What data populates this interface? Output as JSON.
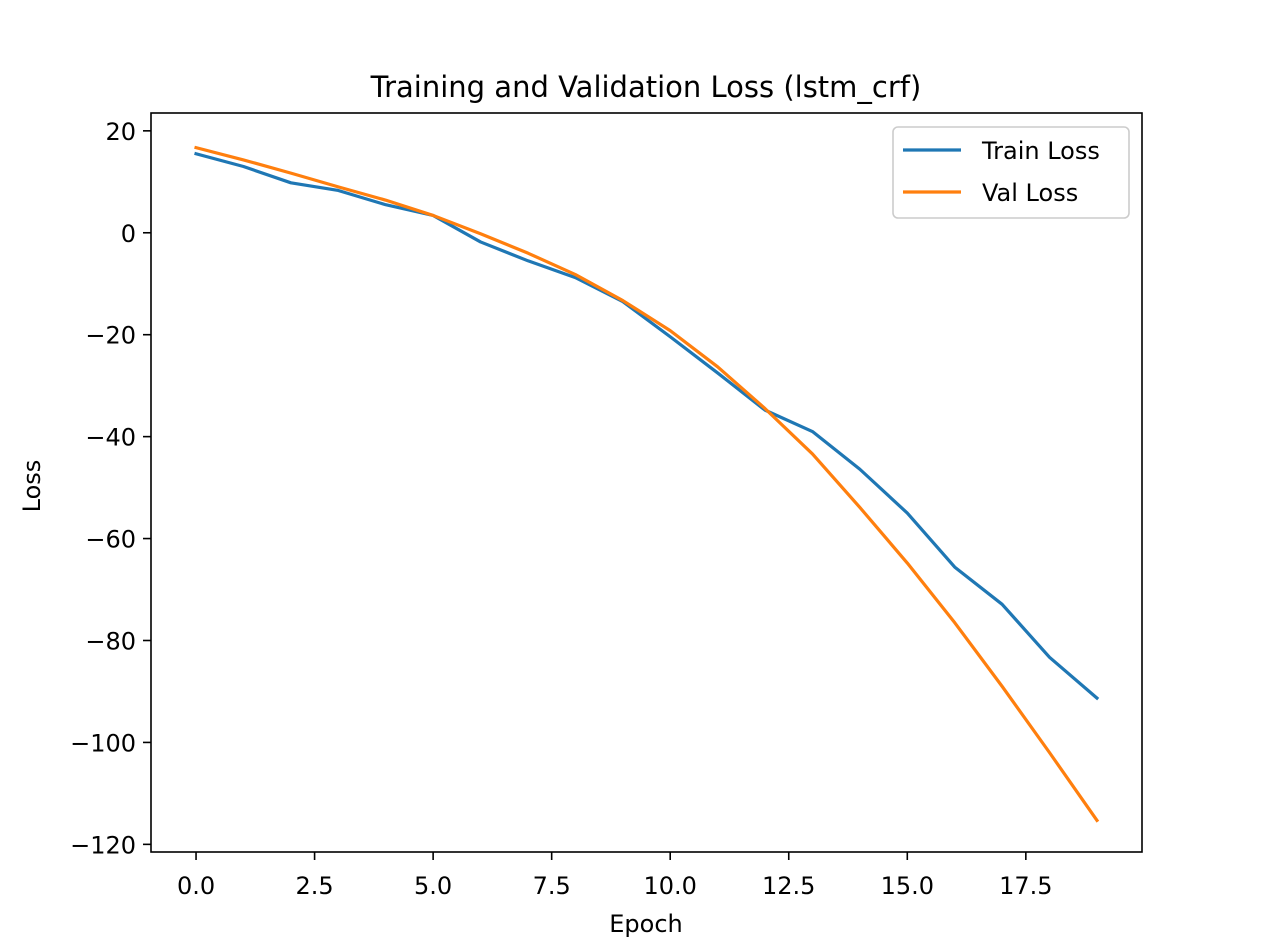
{
  "chart_data": {
    "type": "line",
    "title": "Training and Validation Loss (lstm_crf)",
    "xlabel": "Epoch",
    "ylabel": "Loss",
    "xlim": [
      -0.95,
      19.95
    ],
    "ylim": [
      -121.5,
      23.5
    ],
    "xticks": [
      0.0,
      2.5,
      5.0,
      7.5,
      10.0,
      12.5,
      15.0,
      17.5
    ],
    "xtick_labels": [
      "0.0",
      "2.5",
      "5.0",
      "7.5",
      "10.0",
      "12.5",
      "15.0",
      "17.5"
    ],
    "yticks": [
      20,
      0,
      -20,
      -40,
      -60,
      -80,
      -100,
      -120
    ],
    "ytick_labels": [
      "20",
      "0",
      "−20",
      "−40",
      "−60",
      "−80",
      "−100",
      "−120"
    ],
    "grid": false,
    "legend_position": "top-right",
    "x": [
      0,
      1,
      2,
      3,
      4,
      5,
      6,
      7,
      8,
      9,
      10,
      11,
      12,
      13,
      14,
      15,
      16,
      17,
      18,
      19
    ],
    "series": [
      {
        "name": "Train Loss",
        "color": "#1f77b4",
        "values": [
          15.5,
          13.0,
          9.8,
          8.3,
          5.5,
          3.4,
          -1.8,
          -5.5,
          -8.8,
          -13.5,
          -20.4,
          -27.5,
          -34.8,
          -39.0,
          -46.4,
          -55.0,
          -65.6,
          -72.9,
          -83.3,
          -91.3
        ]
      },
      {
        "name": "Val Loss",
        "color": "#ff7f0e",
        "values": [
          16.7,
          14.3,
          11.7,
          9.0,
          6.4,
          3.4,
          -0.2,
          -4.0,
          -8.2,
          -13.3,
          -19.2,
          -26.3,
          -34.5,
          -43.4,
          -53.9,
          -64.8,
          -76.5,
          -89.0,
          -102.0,
          -115.3
        ]
      }
    ]
  }
}
